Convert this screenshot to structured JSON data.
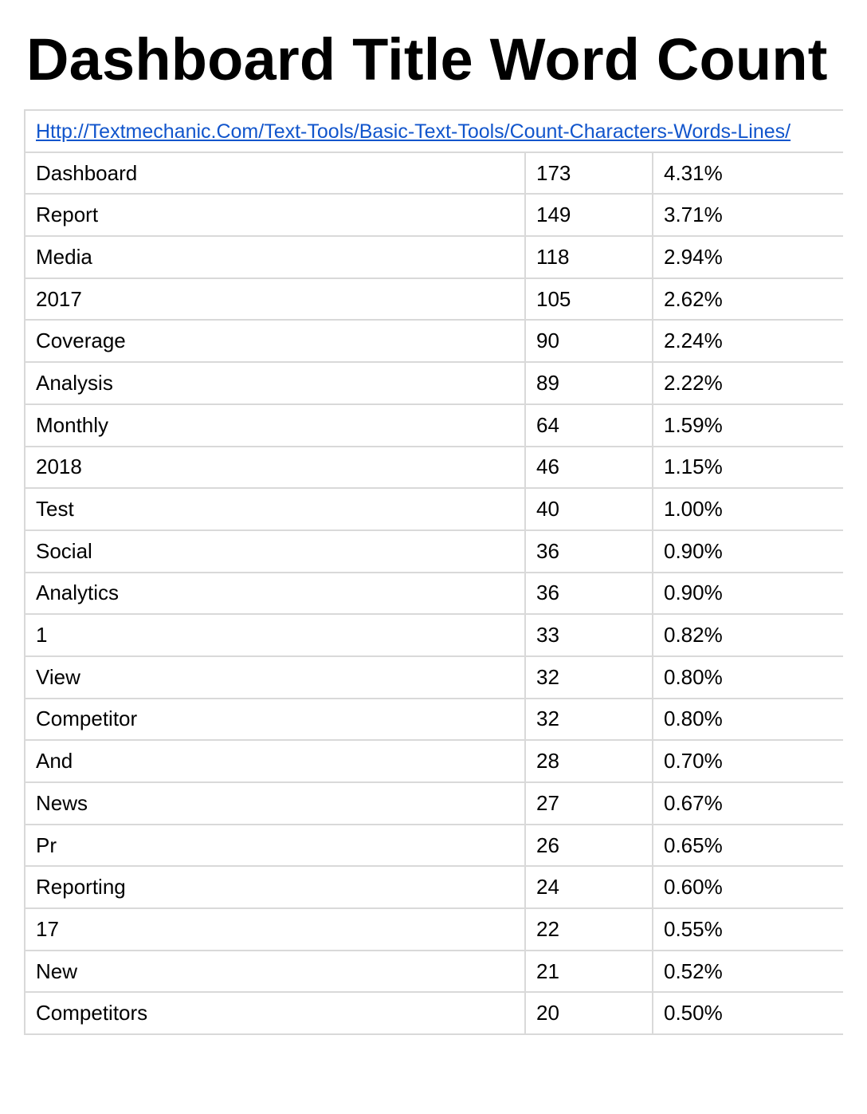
{
  "title": "Dashboard Title Word Count",
  "source_link": "Http://Textmechanic.Com/Text-Tools/Basic-Text-Tools/Count-Characters-Words-Lines/",
  "rows": [
    {
      "word": "Dashboard",
      "count": "173",
      "percent": "4.31%"
    },
    {
      "word": "Report",
      "count": "149",
      "percent": "3.71%"
    },
    {
      "word": "Media",
      "count": "118",
      "percent": "2.94%"
    },
    {
      "word": "2017",
      "count": "105",
      "percent": "2.62%"
    },
    {
      "word": "Coverage",
      "count": "90",
      "percent": "2.24%"
    },
    {
      "word": "Analysis",
      "count": "89",
      "percent": "2.22%"
    },
    {
      "word": "Monthly",
      "count": "64",
      "percent": "1.59%"
    },
    {
      "word": "2018",
      "count": "46",
      "percent": "1.15%"
    },
    {
      "word": "Test",
      "count": "40",
      "percent": "1.00%"
    },
    {
      "word": "Social",
      "count": "36",
      "percent": "0.90%"
    },
    {
      "word": "Analytics",
      "count": "36",
      "percent": "0.90%"
    },
    {
      "word": "1",
      "count": "33",
      "percent": "0.82%"
    },
    {
      "word": "View",
      "count": "32",
      "percent": "0.80%"
    },
    {
      "word": "Competitor",
      "count": "32",
      "percent": "0.80%"
    },
    {
      "word": "And",
      "count": "28",
      "percent": "0.70%"
    },
    {
      "word": "News",
      "count": "27",
      "percent": "0.67%"
    },
    {
      "word": "Pr",
      "count": "26",
      "percent": "0.65%"
    },
    {
      "word": "Reporting",
      "count": "24",
      "percent": "0.60%"
    },
    {
      "word": "17",
      "count": "22",
      "percent": "0.55%"
    },
    {
      "word": "New",
      "count": "21",
      "percent": "0.52%"
    },
    {
      "word": "Competitors",
      "count": "20",
      "percent": "0.50%"
    }
  ],
  "colors": {
    "link": "#1155cc",
    "grid": "#d9d9d9",
    "text": "#000000"
  }
}
